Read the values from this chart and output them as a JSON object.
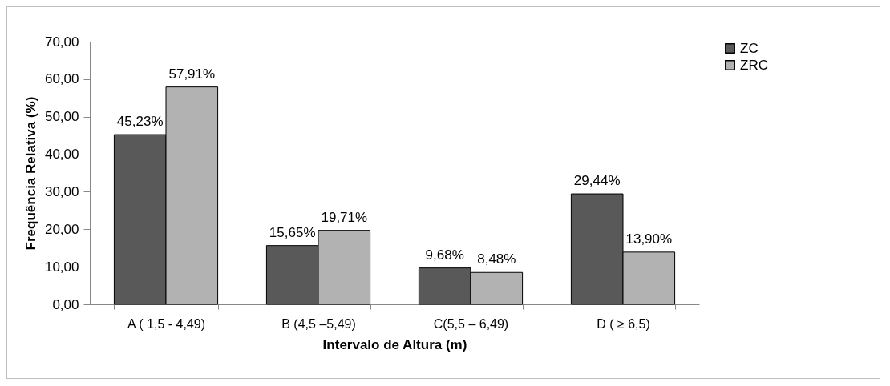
{
  "chart_data": {
    "type": "bar",
    "xlabel": "Intervalo de Altura (m)",
    "ylabel": "Frequência Relativa (%)",
    "categories": [
      "A ( 1,5 - 4,49)",
      "B (4,5 –5,49)",
      "C(5,5  – 6,49)",
      "D ( ≥ 6,5)"
    ],
    "series": [
      {
        "name": "ZC",
        "color": "#595959",
        "values": [
          45.23,
          15.65,
          9.68,
          29.44
        ],
        "value_labels": [
          "45,23%",
          "15,65%",
          "9,68%",
          "29,44%"
        ]
      },
      {
        "name": "ZRC",
        "color": "#b2b2b2",
        "values": [
          57.91,
          19.71,
          8.48,
          13.9
        ],
        "value_labels": [
          "57,91%",
          "19,71%",
          "8,48%",
          "13,90%"
        ]
      }
    ],
    "ylim": [
      0,
      70
    ],
    "yticks": [
      {
        "value": 0,
        "label": "0,00"
      },
      {
        "value": 10,
        "label": "10,00"
      },
      {
        "value": 20,
        "label": "20,00"
      },
      {
        "value": 30,
        "label": "30,00"
      },
      {
        "value": 40,
        "label": "40,00"
      },
      {
        "value": 50,
        "label": "50,00"
      },
      {
        "value": 60,
        "label": "60,00"
      },
      {
        "value": 70,
        "label": "70,00"
      }
    ],
    "grid": false,
    "legend": "right"
  }
}
